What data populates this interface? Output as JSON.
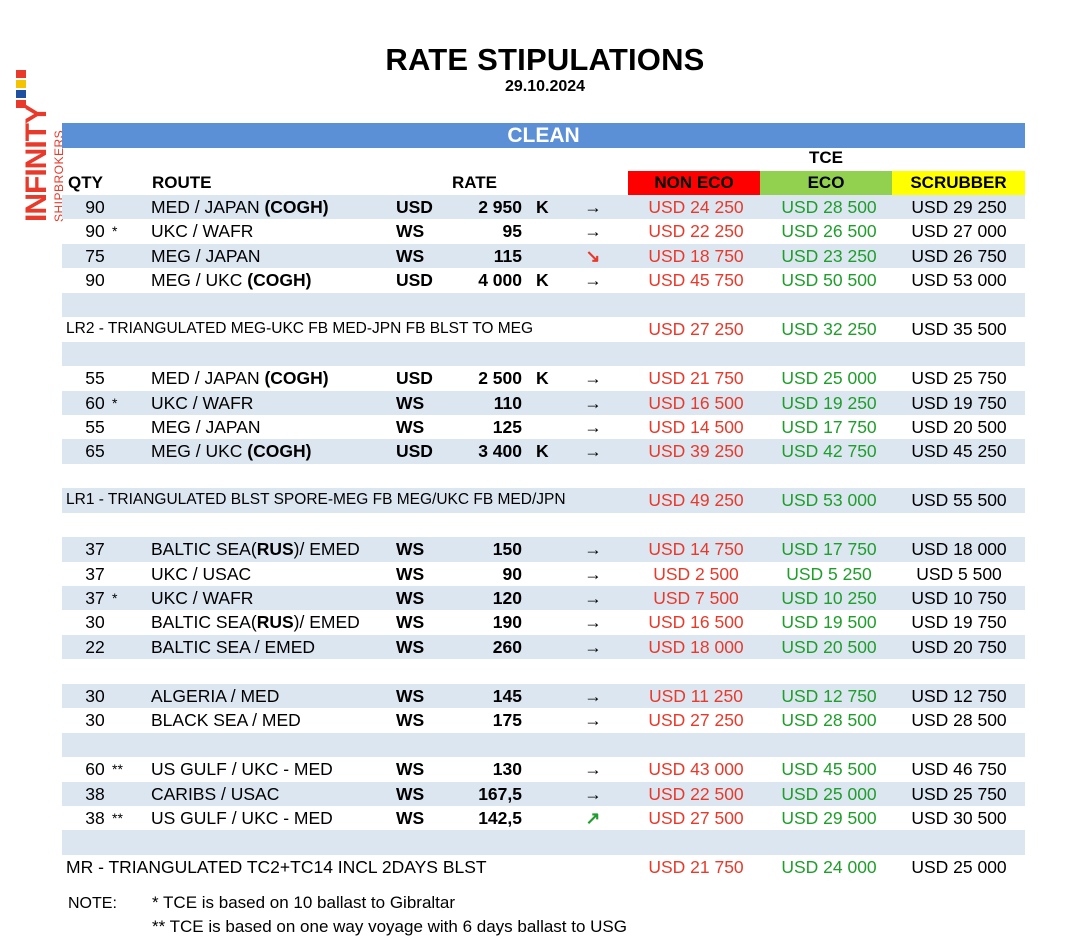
{
  "brand": {
    "name": "INFINITY",
    "sub": "SHIPBROKERS"
  },
  "title": "RATE STIPULATIONS",
  "date": "29.10.2024",
  "section_label": "CLEAN",
  "headers": {
    "qty": "QTY",
    "route": "ROUTE",
    "rate": "RATE",
    "tce": "TCE",
    "non_eco": "NON ECO",
    "eco": "ECO",
    "scrubber": "SCRUBBER"
  },
  "colors": {
    "non_eco_badge": "#ff0000",
    "eco_badge": "#92d050",
    "scrubber_badge": "#ffff00",
    "non_eco_text": "#e8392a",
    "eco_text": "#1e9e2a",
    "band": "#dce6f1",
    "bar": "#5b8fd6"
  },
  "rows": [
    {
      "type": "data",
      "shade": true,
      "qty": "90",
      "star": "",
      "route": "MED / JAPAN",
      "route_bold": "(COGH)",
      "unit": "USD",
      "rate": "2 950",
      "k": "K",
      "arrow": "→",
      "arrow_dir": "flat",
      "non_eco": "USD 24 250",
      "eco": "USD 28 500",
      "scrubber": "USD 29 250"
    },
    {
      "type": "data",
      "shade": false,
      "qty": "90",
      "star": "*",
      "route": "UKC / WAFR",
      "route_bold": "",
      "unit": "WS",
      "rate": "95",
      "k": "",
      "arrow": "→",
      "arrow_dir": "flat",
      "non_eco": "USD 22 250",
      "eco": "USD 26 500",
      "scrubber": "USD 27 000"
    },
    {
      "type": "data",
      "shade": true,
      "qty": "75",
      "star": "",
      "route": "MEG / JAPAN",
      "route_bold": "",
      "unit": "WS",
      "rate": "115",
      "k": "",
      "arrow": "↘",
      "arrow_dir": "down",
      "non_eco": "USD 18 750",
      "eco": "USD 23 250",
      "scrubber": "USD 26 750"
    },
    {
      "type": "data",
      "shade": false,
      "qty": "90",
      "star": "",
      "route": "MEG / UKC",
      "route_bold": "(COGH)",
      "unit": "USD",
      "rate": "4 000",
      "k": "K",
      "arrow": "→",
      "arrow_dir": "flat",
      "non_eco": "USD 45 750",
      "eco": "USD 50 500",
      "scrubber": "USD 53 000"
    },
    {
      "type": "blank",
      "shade": true
    },
    {
      "type": "tri",
      "shade": false,
      "label": "LR2 - TRIANGULATED MEG-UKC FB MED-JPN FB BLST TO MEG",
      "non_eco": "USD 27 250",
      "eco": "USD 32 250",
      "scrubber": "USD 35 500"
    },
    {
      "type": "blank",
      "shade": true
    },
    {
      "type": "data",
      "shade": false,
      "qty": "55",
      "star": "",
      "route": "MED / JAPAN",
      "route_bold": "(COGH)",
      "unit": "USD",
      "rate": "2 500",
      "k": "K",
      "arrow": "→",
      "arrow_dir": "flat",
      "non_eco": "USD 21 750",
      "eco": "USD 25 000",
      "scrubber": "USD 25 750"
    },
    {
      "type": "data",
      "shade": true,
      "qty": "60",
      "star": "*",
      "route": "UKC / WAFR",
      "route_bold": "",
      "unit": "WS",
      "rate": "110",
      "k": "",
      "arrow": "→",
      "arrow_dir": "flat",
      "non_eco": "USD 16 500",
      "eco": "USD 19 250",
      "scrubber": "USD 19 750"
    },
    {
      "type": "data",
      "shade": false,
      "qty": "55",
      "star": "",
      "route": "MEG / JAPAN",
      "route_bold": "",
      "unit": "WS",
      "rate": "125",
      "k": "",
      "arrow": "→",
      "arrow_dir": "flat",
      "non_eco": "USD 14 500",
      "eco": "USD 17 750",
      "scrubber": "USD 20 500"
    },
    {
      "type": "data",
      "shade": true,
      "qty": "65",
      "star": "",
      "route": "MEG / UKC",
      "route_bold": "(COGH)",
      "unit": "USD",
      "rate": "3 400",
      "k": "K",
      "arrow": "→",
      "arrow_dir": "flat",
      "non_eco": "USD 39 250",
      "eco": "USD 42 750",
      "scrubber": "USD 45 250"
    },
    {
      "type": "blank",
      "shade": false
    },
    {
      "type": "tri",
      "shade": true,
      "label": "LR1 - TRIANGULATED BLST SPORE-MEG FB MEG/UKC FB MED/JPN",
      "non_eco": "USD 49 250",
      "eco": "USD 53 000",
      "scrubber": "USD 55 500"
    },
    {
      "type": "blank",
      "shade": false
    },
    {
      "type": "data",
      "shade": true,
      "qty": "37",
      "star": "",
      "route": "BALTIC SEA(",
      "route_bold": "RUS",
      "route_after": ")/ EMED",
      "unit": "WS",
      "rate": "150",
      "k": "",
      "arrow": "→",
      "arrow_dir": "flat",
      "non_eco": "USD 14 750",
      "eco": "USD 17 750",
      "scrubber": "USD 18 000"
    },
    {
      "type": "data",
      "shade": false,
      "qty": "37",
      "star": "",
      "route": "UKC / USAC",
      "route_bold": "",
      "unit": "WS",
      "rate": "90",
      "k": "",
      "arrow": "→",
      "arrow_dir": "flat",
      "non_eco": "USD 2 500",
      "eco": "USD 5 250",
      "scrubber": "USD 5 500"
    },
    {
      "type": "data",
      "shade": true,
      "qty": "37",
      "star": "*",
      "route": "UKC / WAFR",
      "route_bold": "",
      "unit": "WS",
      "rate": "120",
      "k": "",
      "arrow": "→",
      "arrow_dir": "flat",
      "non_eco": "USD 7 500",
      "eco": "USD 10 250",
      "scrubber": "USD 10 750"
    },
    {
      "type": "data",
      "shade": false,
      "qty": "30",
      "star": "",
      "route": "BALTIC SEA(",
      "route_bold": "RUS",
      "route_after": ")/ EMED",
      "unit": "WS",
      "rate": "190",
      "k": "",
      "arrow": "→",
      "arrow_dir": "flat",
      "non_eco": "USD 16 500",
      "eco": "USD 19 500",
      "scrubber": "USD 19 750"
    },
    {
      "type": "data",
      "shade": true,
      "qty": "22",
      "star": "",
      "route": "BALTIC SEA / EMED",
      "route_bold": "",
      "unit": "WS",
      "rate": "260",
      "k": "",
      "arrow": "→",
      "arrow_dir": "flat",
      "non_eco": "USD 18 000",
      "eco": "USD 20 500",
      "scrubber": "USD 20 750"
    },
    {
      "type": "blank",
      "shade": false
    },
    {
      "type": "data",
      "shade": true,
      "qty": "30",
      "star": "",
      "route": "ALGERIA / MED",
      "route_bold": "",
      "unit": "WS",
      "rate": "145",
      "k": "",
      "arrow": "→",
      "arrow_dir": "flat",
      "non_eco": "USD 11 250",
      "eco": "USD 12 750",
      "scrubber": "USD 12 750"
    },
    {
      "type": "data",
      "shade": false,
      "qty": "30",
      "star": "",
      "route": "BLACK SEA / MED",
      "route_bold": "",
      "unit": "WS",
      "rate": "175",
      "k": "",
      "arrow": "→",
      "arrow_dir": "flat",
      "non_eco": "USD 27 250",
      "eco": "USD 28 500",
      "scrubber": "USD 28 500"
    },
    {
      "type": "blank",
      "shade": true
    },
    {
      "type": "data",
      "shade": false,
      "qty": "60",
      "star": "**",
      "route": "US GULF / UKC - MED",
      "route_bold": "",
      "unit": "WS",
      "rate": "130",
      "k": "",
      "arrow": "→",
      "arrow_dir": "flat",
      "non_eco": "USD 43 000",
      "eco": "USD 45 500",
      "scrubber": "USD 46 750"
    },
    {
      "type": "data",
      "shade": true,
      "qty": "38",
      "star": "",
      "route": "CARIBS / USAC",
      "route_bold": "",
      "unit": "WS",
      "rate": "167,5",
      "k": "",
      "arrow": "→",
      "arrow_dir": "flat",
      "non_eco": "USD 22 500",
      "eco": "USD 25 000",
      "scrubber": "USD 25 750"
    },
    {
      "type": "data",
      "shade": false,
      "qty": "38",
      "star": "**",
      "route": "US GULF / UKC - MED",
      "route_bold": "",
      "unit": "WS",
      "rate": "142,5",
      "k": "",
      "arrow": "↗",
      "arrow_dir": "up",
      "non_eco": "USD 27 500",
      "eco": "USD 29 500",
      "scrubber": "USD 30 500"
    },
    {
      "type": "blank",
      "shade": true
    },
    {
      "type": "tri",
      "shade": false,
      "mr": true,
      "label": "MR - TRIANGULATED TC2+TC14 INCL 2DAYS BLST",
      "non_eco": "USD 21 750",
      "eco": "USD 24 000",
      "scrubber": "USD 25 000"
    }
  ],
  "notes": {
    "label": "NOTE:",
    "lines": [
      "*  TCE is based on 10 ballast to Gibraltar",
      "** TCE is based on one way voyage with 6 days ballast to USG"
    ]
  }
}
